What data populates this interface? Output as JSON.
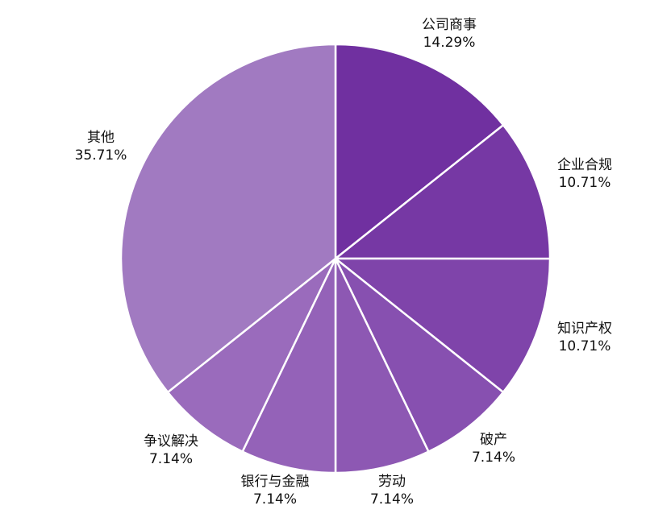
{
  "chart_data": {
    "type": "pie",
    "title": "",
    "start_angle_deg": 0,
    "direction": "clockwise",
    "slices": [
      {
        "name": "公司商事",
        "value": 14.29,
        "percent_label": "14.29%",
        "color": "#7030a0"
      },
      {
        "name": "企业合规",
        "value": 10.71,
        "percent_label": "10.71%",
        "color": "#7638a4"
      },
      {
        "name": "知识产权",
        "value": 10.71,
        "percent_label": "10.71%",
        "color": "#7f44aa"
      },
      {
        "name": "破产",
        "value": 7.14,
        "percent_label": "7.14%",
        "color": "#8750b0"
      },
      {
        "name": "劳动",
        "value": 7.14,
        "percent_label": "7.14%",
        "color": "#8d58b3"
      },
      {
        "name": "银行与金融",
        "value": 7.14,
        "percent_label": "7.14%",
        "color": "#9462b8"
      },
      {
        "name": "争议解决",
        "value": 7.14,
        "percent_label": "7.14%",
        "color": "#9a6bbc"
      },
      {
        "name": "其他",
        "value": 35.71,
        "percent_label": "35.71%",
        "color": "#a17ac1"
      }
    ]
  }
}
